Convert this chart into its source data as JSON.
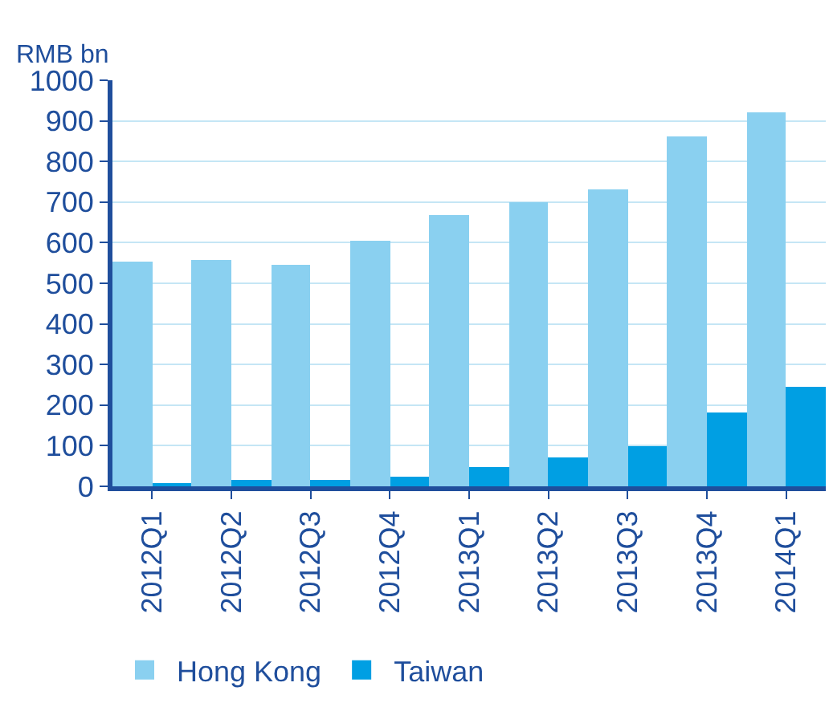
{
  "chart_data": {
    "type": "bar",
    "ylabel": "RMB bn",
    "categories": [
      "2012Q1",
      "2012Q2",
      "2012Q3",
      "2012Q4",
      "2013Q1",
      "2013Q2",
      "2013Q3",
      "2013Q4",
      "2014Q1"
    ],
    "series": [
      {
        "name": "Hong Kong",
        "color": "#8ad0f0",
        "values": [
          553,
          557,
          545,
          603,
          668,
          698,
          730,
          860,
          920
        ]
      },
      {
        "name": "Taiwan",
        "color": "#009fe3",
        "values": [
          8,
          14,
          17,
          22,
          46,
          70,
          97,
          183,
          245
        ]
      }
    ],
    "ylim": [
      0,
      1000
    ],
    "yticks": [
      0,
      100,
      200,
      300,
      400,
      500,
      600,
      700,
      800,
      900,
      1000
    ],
    "grid": "y",
    "legend": "bottom"
  }
}
